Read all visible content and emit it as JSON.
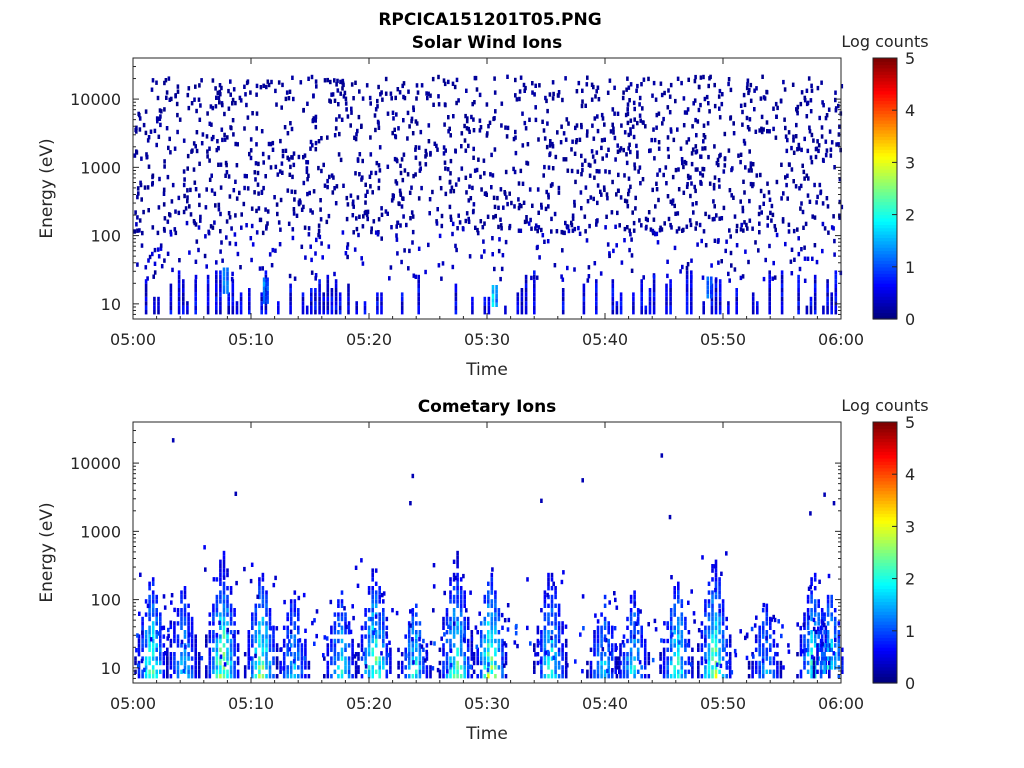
{
  "figure_title": "RPCICA151201T05.PNG",
  "chart_data": [
    {
      "type": "heatmap",
      "title": "Solar Wind Ions",
      "xlabel": "Time",
      "ylabel": "Energy (eV)",
      "x_ticks": [
        "05:00",
        "05:10",
        "05:20",
        "05:30",
        "05:40",
        "05:50",
        "06:00"
      ],
      "x_range_minutes": [
        0,
        60
      ],
      "y_scale": "log",
      "y_ticks": [
        "10",
        "100",
        "1000",
        "10000"
      ],
      "y_range": [
        6,
        40000
      ],
      "colorbar": {
        "label": "Log counts",
        "range": [
          0,
          5
        ],
        "ticks": [
          "0",
          "1",
          "2",
          "3",
          "4",
          "5"
        ],
        "colormap": "jet"
      },
      "description_level": "sparse low counts across all energies; denser below ~30 eV",
      "hotspots": [
        {
          "t": 7.6,
          "e_low": 14,
          "e_high": 30,
          "level": 1.6
        },
        {
          "t": 11.0,
          "e_low": 10,
          "e_high": 22,
          "level": 1.5
        },
        {
          "t": 30.4,
          "e_low": 9,
          "e_high": 18,
          "level": 2.0
        },
        {
          "t": 48.6,
          "e_low": 12,
          "e_high": 25,
          "level": 1.4
        }
      ]
    },
    {
      "type": "heatmap",
      "title": "Cometary Ions",
      "xlabel": "Time",
      "ylabel": "Energy (eV)",
      "x_ticks": [
        "05:00",
        "05:10",
        "05:20",
        "05:30",
        "05:40",
        "05:50",
        "06:00"
      ],
      "x_range_minutes": [
        0,
        60
      ],
      "y_scale": "log",
      "y_ticks": [
        "10",
        "100",
        "1000",
        "10000"
      ],
      "y_range": [
        6,
        40000
      ],
      "colorbar": {
        "label": "Log counts",
        "range": [
          0,
          5
        ],
        "ticks": [
          "0",
          "1",
          "2",
          "3",
          "4",
          "5"
        ],
        "colormap": "jet"
      },
      "bursts": [
        {
          "t": 1.5,
          "top": 250,
          "peak": 2.4
        },
        {
          "t": 4.2,
          "top": 180,
          "peak": 1.8
        },
        {
          "t": 7.5,
          "top": 700,
          "peak": 3.0
        },
        {
          "t": 10.8,
          "top": 300,
          "peak": 2.7
        },
        {
          "t": 13.5,
          "top": 150,
          "peak": 1.8
        },
        {
          "t": 17.5,
          "top": 150,
          "peak": 2.0
        },
        {
          "t": 20.4,
          "top": 400,
          "peak": 2.8
        },
        {
          "t": 23.8,
          "top": 100,
          "peak": 2.0
        },
        {
          "t": 27.3,
          "top": 600,
          "peak": 2.6
        },
        {
          "t": 30.2,
          "top": 300,
          "peak": 2.9
        },
        {
          "t": 35.3,
          "top": 350,
          "peak": 2.2
        },
        {
          "t": 39.8,
          "top": 120,
          "peak": 1.8
        },
        {
          "t": 42.3,
          "top": 150,
          "peak": 2.0
        },
        {
          "t": 46.0,
          "top": 200,
          "peak": 2.3
        },
        {
          "t": 49.2,
          "top": 500,
          "peak": 2.9
        },
        {
          "t": 53.5,
          "top": 100,
          "peak": 1.6
        },
        {
          "t": 57.6,
          "top": 300,
          "peak": 2.4
        },
        {
          "t": 59.0,
          "top": 150,
          "peak": 2.2
        }
      ],
      "isolated_points": [
        {
          "t": 3.3,
          "e": 20000
        },
        {
          "t": 8.6,
          "e": 3300
        },
        {
          "t": 23.6,
          "e": 6000
        },
        {
          "t": 23.4,
          "e": 2400
        },
        {
          "t": 34.5,
          "e": 2600
        },
        {
          "t": 38.0,
          "e": 5200
        },
        {
          "t": 44.7,
          "e": 12000
        },
        {
          "t": 45.4,
          "e": 1500
        },
        {
          "t": 57.3,
          "e": 1700
        },
        {
          "t": 58.5,
          "e": 3200
        },
        {
          "t": 59.3,
          "e": 2400
        }
      ]
    }
  ]
}
